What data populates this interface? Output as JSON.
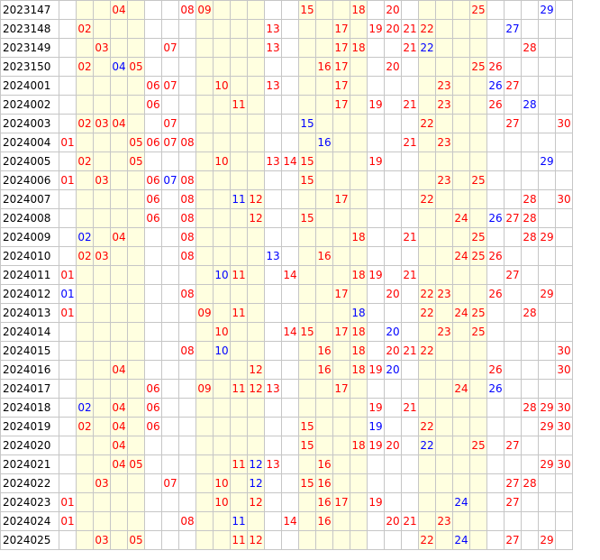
{
  "colors": {
    "red": "#ff0000",
    "blue": "#0000ff",
    "shade": "#ffffe0",
    "grid": "#c6c6c6"
  },
  "columns": 30,
  "shaded_columns": [
    2,
    3,
    4,
    5,
    9,
    10,
    11,
    12,
    15,
    16,
    17,
    18,
    22,
    23,
    24,
    25
  ],
  "rows": [
    {
      "period": "2023147",
      "cells": [
        [
          4,
          "04",
          "r"
        ],
        [
          8,
          "08",
          "r"
        ],
        [
          9,
          "09",
          "r"
        ],
        [
          15,
          "15",
          "r"
        ],
        [
          18,
          "18",
          "r"
        ],
        [
          20,
          "20",
          "r"
        ],
        [
          25,
          "25",
          "r"
        ],
        [
          29,
          "29",
          "b"
        ]
      ]
    },
    {
      "period": "2023148",
      "cells": [
        [
          2,
          "02",
          "r"
        ],
        [
          13,
          "13",
          "r"
        ],
        [
          17,
          "17",
          "r"
        ],
        [
          19,
          "19",
          "r"
        ],
        [
          20,
          "20",
          "r"
        ],
        [
          21,
          "21",
          "r"
        ],
        [
          22,
          "22",
          "r"
        ],
        [
          27,
          "27",
          "b"
        ]
      ]
    },
    {
      "period": "2023149",
      "cells": [
        [
          3,
          "03",
          "r"
        ],
        [
          7,
          "07",
          "r"
        ],
        [
          13,
          "13",
          "r"
        ],
        [
          17,
          "17",
          "r"
        ],
        [
          18,
          "18",
          "r"
        ],
        [
          21,
          "21",
          "r"
        ],
        [
          22,
          "22",
          "b"
        ],
        [
          28,
          "28",
          "r"
        ]
      ]
    },
    {
      "period": "2023150",
      "cells": [
        [
          2,
          "02",
          "r"
        ],
        [
          4,
          "04",
          "b"
        ],
        [
          5,
          "05",
          "r"
        ],
        [
          16,
          "16",
          "r"
        ],
        [
          17,
          "17",
          "r"
        ],
        [
          20,
          "20",
          "r"
        ],
        [
          25,
          "25",
          "r"
        ],
        [
          26,
          "26",
          "r"
        ]
      ]
    },
    {
      "period": "2024001",
      "cells": [
        [
          6,
          "06",
          "r"
        ],
        [
          7,
          "07",
          "r"
        ],
        [
          10,
          "10",
          "r"
        ],
        [
          13,
          "13",
          "r"
        ],
        [
          17,
          "17",
          "r"
        ],
        [
          23,
          "23",
          "r"
        ],
        [
          26,
          "26",
          "b"
        ],
        [
          27,
          "27",
          "r"
        ]
      ]
    },
    {
      "period": "2024002",
      "cells": [
        [
          6,
          "06",
          "r"
        ],
        [
          11,
          "11",
          "r"
        ],
        [
          17,
          "17",
          "r"
        ],
        [
          19,
          "19",
          "r"
        ],
        [
          21,
          "21",
          "r"
        ],
        [
          23,
          "23",
          "r"
        ],
        [
          26,
          "26",
          "r"
        ],
        [
          28,
          "28",
          "b"
        ]
      ]
    },
    {
      "period": "2024003",
      "cells": [
        [
          2,
          "02",
          "r"
        ],
        [
          3,
          "03",
          "r"
        ],
        [
          4,
          "04",
          "r"
        ],
        [
          7,
          "07",
          "r"
        ],
        [
          15,
          "15",
          "b"
        ],
        [
          22,
          "22",
          "r"
        ],
        [
          27,
          "27",
          "r"
        ],
        [
          30,
          "30",
          "r"
        ]
      ]
    },
    {
      "period": "2024004",
      "cells": [
        [
          1,
          "01",
          "r"
        ],
        [
          5,
          "05",
          "r"
        ],
        [
          6,
          "06",
          "r"
        ],
        [
          7,
          "07",
          "r"
        ],
        [
          8,
          "08",
          "r"
        ],
        [
          16,
          "16",
          "b"
        ],
        [
          21,
          "21",
          "r"
        ],
        [
          23,
          "23",
          "r"
        ]
      ]
    },
    {
      "period": "2024005",
      "cells": [
        [
          2,
          "02",
          "r"
        ],
        [
          5,
          "05",
          "r"
        ],
        [
          10,
          "10",
          "r"
        ],
        [
          13,
          "13",
          "r"
        ],
        [
          14,
          "14",
          "r"
        ],
        [
          15,
          "15",
          "r"
        ],
        [
          19,
          "19",
          "r"
        ],
        [
          29,
          "29",
          "b"
        ]
      ]
    },
    {
      "period": "2024006",
      "cells": [
        [
          1,
          "01",
          "r"
        ],
        [
          3,
          "03",
          "r"
        ],
        [
          6,
          "06",
          "r"
        ],
        [
          7,
          "07",
          "b"
        ],
        [
          8,
          "08",
          "r"
        ],
        [
          15,
          "15",
          "r"
        ],
        [
          23,
          "23",
          "r"
        ],
        [
          25,
          "25",
          "r"
        ]
      ]
    },
    {
      "period": "2024007",
      "cells": [
        [
          6,
          "06",
          "r"
        ],
        [
          8,
          "08",
          "r"
        ],
        [
          11,
          "11",
          "b"
        ],
        [
          12,
          "12",
          "r"
        ],
        [
          17,
          "17",
          "r"
        ],
        [
          22,
          "22",
          "r"
        ],
        [
          28,
          "28",
          "r"
        ],
        [
          30,
          "30",
          "r"
        ]
      ]
    },
    {
      "period": "2024008",
      "cells": [
        [
          6,
          "06",
          "r"
        ],
        [
          8,
          "08",
          "r"
        ],
        [
          12,
          "12",
          "r"
        ],
        [
          15,
          "15",
          "r"
        ],
        [
          24,
          "24",
          "r"
        ],
        [
          26,
          "26",
          "b"
        ],
        [
          27,
          "27",
          "r"
        ],
        [
          28,
          "28",
          "r"
        ]
      ]
    },
    {
      "period": "2024009",
      "cells": [
        [
          2,
          "02",
          "b"
        ],
        [
          4,
          "04",
          "r"
        ],
        [
          8,
          "08",
          "r"
        ],
        [
          18,
          "18",
          "r"
        ],
        [
          21,
          "21",
          "r"
        ],
        [
          25,
          "25",
          "r"
        ],
        [
          28,
          "28",
          "r"
        ],
        [
          29,
          "29",
          "r"
        ]
      ]
    },
    {
      "period": "2024010",
      "cells": [
        [
          2,
          "02",
          "r"
        ],
        [
          3,
          "03",
          "r"
        ],
        [
          8,
          "08",
          "r"
        ],
        [
          13,
          "13",
          "b"
        ],
        [
          16,
          "16",
          "r"
        ],
        [
          24,
          "24",
          "r"
        ],
        [
          25,
          "25",
          "r"
        ],
        [
          26,
          "26",
          "r"
        ]
      ]
    },
    {
      "period": "2024011",
      "cells": [
        [
          1,
          "01",
          "r"
        ],
        [
          10,
          "10",
          "b"
        ],
        [
          11,
          "11",
          "r"
        ],
        [
          14,
          "14",
          "r"
        ],
        [
          18,
          "18",
          "r"
        ],
        [
          19,
          "19",
          "r"
        ],
        [
          21,
          "21",
          "r"
        ],
        [
          27,
          "27",
          "r"
        ]
      ]
    },
    {
      "period": "2024012",
      "cells": [
        [
          1,
          "01",
          "b"
        ],
        [
          8,
          "08",
          "r"
        ],
        [
          17,
          "17",
          "r"
        ],
        [
          20,
          "20",
          "r"
        ],
        [
          22,
          "22",
          "r"
        ],
        [
          23,
          "23",
          "r"
        ],
        [
          26,
          "26",
          "r"
        ],
        [
          29,
          "29",
          "r"
        ]
      ]
    },
    {
      "period": "2024013",
      "cells": [
        [
          1,
          "01",
          "r"
        ],
        [
          9,
          "09",
          "r"
        ],
        [
          11,
          "11",
          "r"
        ],
        [
          18,
          "18",
          "b"
        ],
        [
          22,
          "22",
          "r"
        ],
        [
          24,
          "24",
          "r"
        ],
        [
          25,
          "25",
          "r"
        ],
        [
          28,
          "28",
          "r"
        ]
      ]
    },
    {
      "period": "2024014",
      "cells": [
        [
          10,
          "10",
          "r"
        ],
        [
          14,
          "14",
          "r"
        ],
        [
          15,
          "15",
          "r"
        ],
        [
          17,
          "17",
          "r"
        ],
        [
          18,
          "18",
          "r"
        ],
        [
          20,
          "20",
          "b"
        ],
        [
          23,
          "23",
          "r"
        ],
        [
          25,
          "25",
          "r"
        ]
      ]
    },
    {
      "period": "2024015",
      "cells": [
        [
          8,
          "08",
          "r"
        ],
        [
          10,
          "10",
          "b"
        ],
        [
          16,
          "16",
          "r"
        ],
        [
          18,
          "18",
          "r"
        ],
        [
          20,
          "20",
          "r"
        ],
        [
          21,
          "21",
          "r"
        ],
        [
          22,
          "22",
          "r"
        ],
        [
          30,
          "30",
          "r"
        ]
      ]
    },
    {
      "period": "2024016",
      "cells": [
        [
          4,
          "04",
          "r"
        ],
        [
          12,
          "12",
          "r"
        ],
        [
          16,
          "16",
          "r"
        ],
        [
          18,
          "18",
          "r"
        ],
        [
          19,
          "19",
          "r"
        ],
        [
          20,
          "20",
          "b"
        ],
        [
          26,
          "26",
          "r"
        ],
        [
          30,
          "30",
          "r"
        ]
      ]
    },
    {
      "period": "2024017",
      "cells": [
        [
          6,
          "06",
          "r"
        ],
        [
          9,
          "09",
          "r"
        ],
        [
          11,
          "11",
          "r"
        ],
        [
          12,
          "12",
          "r"
        ],
        [
          13,
          "13",
          "r"
        ],
        [
          17,
          "17",
          "r"
        ],
        [
          24,
          "24",
          "r"
        ],
        [
          26,
          "26",
          "b"
        ]
      ]
    },
    {
      "period": "2024018",
      "cells": [
        [
          2,
          "02",
          "b"
        ],
        [
          4,
          "04",
          "r"
        ],
        [
          6,
          "06",
          "r"
        ],
        [
          19,
          "19",
          "r"
        ],
        [
          21,
          "21",
          "r"
        ],
        [
          28,
          "28",
          "r"
        ],
        [
          29,
          "29",
          "r"
        ],
        [
          30,
          "30",
          "r"
        ]
      ]
    },
    {
      "period": "2024019",
      "cells": [
        [
          2,
          "02",
          "r"
        ],
        [
          4,
          "04",
          "r"
        ],
        [
          6,
          "06",
          "r"
        ],
        [
          15,
          "15",
          "r"
        ],
        [
          19,
          "19",
          "b"
        ],
        [
          22,
          "22",
          "r"
        ],
        [
          29,
          "29",
          "r"
        ],
        [
          30,
          "30",
          "r"
        ]
      ]
    },
    {
      "period": "2024020",
      "cells": [
        [
          4,
          "04",
          "r"
        ],
        [
          15,
          "15",
          "r"
        ],
        [
          18,
          "18",
          "r"
        ],
        [
          19,
          "19",
          "r"
        ],
        [
          20,
          "20",
          "r"
        ],
        [
          22,
          "22",
          "b"
        ],
        [
          25,
          "25",
          "r"
        ],
        [
          27,
          "27",
          "r"
        ]
      ]
    },
    {
      "period": "2024021",
      "cells": [
        [
          4,
          "04",
          "r"
        ],
        [
          5,
          "05",
          "r"
        ],
        [
          11,
          "11",
          "r"
        ],
        [
          12,
          "12",
          "b"
        ],
        [
          13,
          "13",
          "r"
        ],
        [
          16,
          "16",
          "r"
        ],
        [
          29,
          "29",
          "r"
        ],
        [
          30,
          "30",
          "r"
        ]
      ]
    },
    {
      "period": "2024022",
      "cells": [
        [
          3,
          "03",
          "r"
        ],
        [
          7,
          "07",
          "r"
        ],
        [
          10,
          "10",
          "r"
        ],
        [
          12,
          "12",
          "b"
        ],
        [
          15,
          "15",
          "r"
        ],
        [
          16,
          "16",
          "r"
        ],
        [
          27,
          "27",
          "r"
        ],
        [
          28,
          "28",
          "r"
        ]
      ]
    },
    {
      "period": "2024023",
      "cells": [
        [
          1,
          "01",
          "r"
        ],
        [
          10,
          "10",
          "r"
        ],
        [
          12,
          "12",
          "r"
        ],
        [
          16,
          "16",
          "r"
        ],
        [
          17,
          "17",
          "r"
        ],
        [
          19,
          "19",
          "r"
        ],
        [
          24,
          "24",
          "b"
        ],
        [
          27,
          "27",
          "r"
        ]
      ]
    },
    {
      "period": "2024024",
      "cells": [
        [
          1,
          "01",
          "r"
        ],
        [
          8,
          "08",
          "r"
        ],
        [
          11,
          "11",
          "b"
        ],
        [
          14,
          "14",
          "r"
        ],
        [
          16,
          "16",
          "r"
        ],
        [
          20,
          "20",
          "r"
        ],
        [
          21,
          "21",
          "r"
        ],
        [
          23,
          "23",
          "r"
        ]
      ]
    },
    {
      "period": "2024025",
      "cells": [
        [
          3,
          "03",
          "r"
        ],
        [
          5,
          "05",
          "r"
        ],
        [
          11,
          "11",
          "r"
        ],
        [
          12,
          "12",
          "r"
        ],
        [
          22,
          "22",
          "r"
        ],
        [
          24,
          "24",
          "b"
        ],
        [
          27,
          "27",
          "r"
        ],
        [
          29,
          "29",
          "r"
        ]
      ]
    }
  ]
}
